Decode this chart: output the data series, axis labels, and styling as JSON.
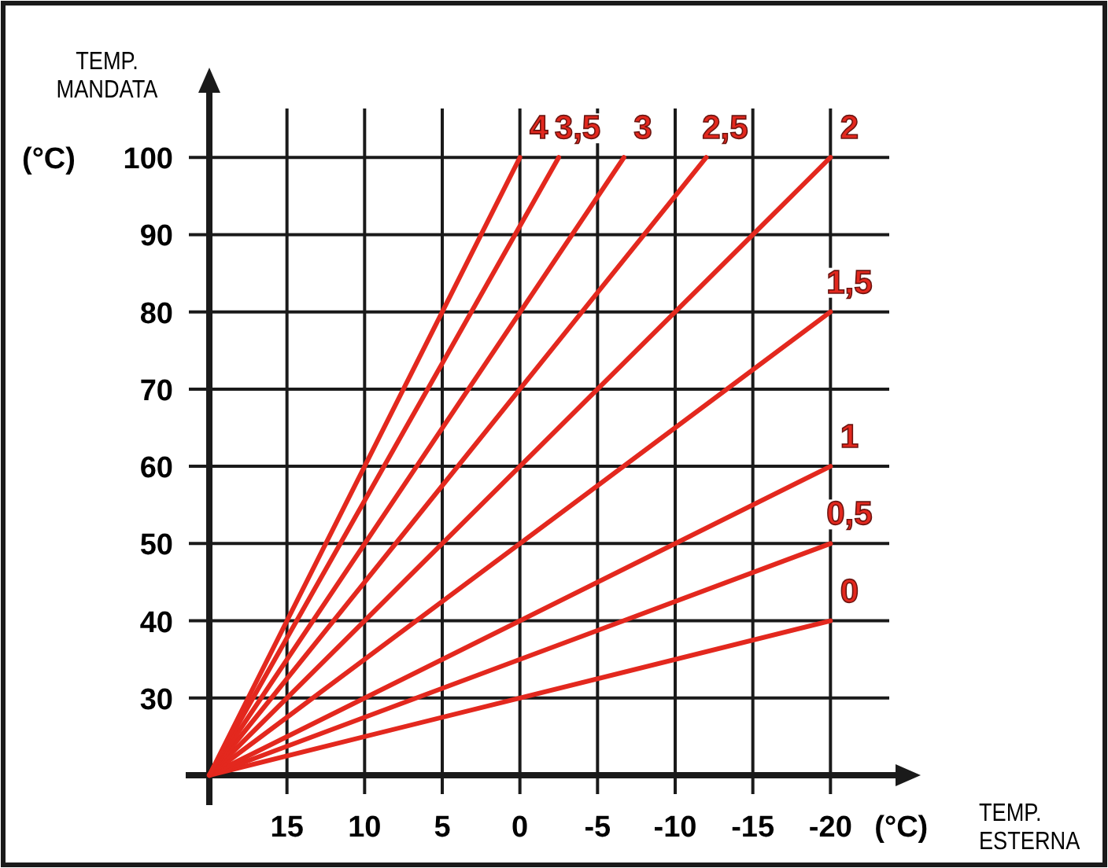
{
  "chart_data": {
    "type": "line",
    "xlabel": "TEMP. ESTERNA",
    "ylabel": "TEMP. MANDATA",
    "annotations": [
      "(°C)",
      "(°C)"
    ],
    "xlim": [
      20,
      -25
    ],
    "ylim": [
      20,
      110
    ],
    "xticks": [
      15,
      10,
      5,
      0,
      -5,
      -10,
      -15,
      -20
    ],
    "yticks": [
      30,
      40,
      50,
      60,
      70,
      80,
      90,
      100
    ],
    "grid": true,
    "legend": false,
    "line_style": "solid",
    "marker": "none",
    "series": [
      {
        "name": "0",
        "color": "#e3281e",
        "x": [
          20,
          -20
        ],
        "values": [
          20,
          40
        ]
      },
      {
        "name": "0,5",
        "color": "#e3281e",
        "x": [
          20,
          -20
        ],
        "values": [
          20,
          50
        ]
      },
      {
        "name": "1",
        "color": "#e3281e",
        "x": [
          20,
          -20
        ],
        "values": [
          20,
          60
        ]
      },
      {
        "name": "1,5",
        "color": "#e3281e",
        "x": [
          20,
          -20
        ],
        "values": [
          20,
          80
        ]
      },
      {
        "name": "2",
        "color": "#e3281e",
        "x": [
          20,
          -20
        ],
        "values": [
          20,
          100
        ]
      },
      {
        "name": "2,5",
        "color": "#e3281e",
        "x": [
          20,
          -12
        ],
        "values": [
          20,
          100
        ]
      },
      {
        "name": "3",
        "color": "#e3281e",
        "x": [
          20,
          -6.7
        ],
        "values": [
          20,
          100
        ]
      },
      {
        "name": "3,5",
        "color": "#e3281e",
        "x": [
          20,
          -2.5
        ],
        "values": [
          20,
          100
        ]
      },
      {
        "name": "4",
        "color": "#e3281e",
        "x": [
          20,
          0
        ],
        "values": [
          20,
          100
        ]
      }
    ]
  }
}
